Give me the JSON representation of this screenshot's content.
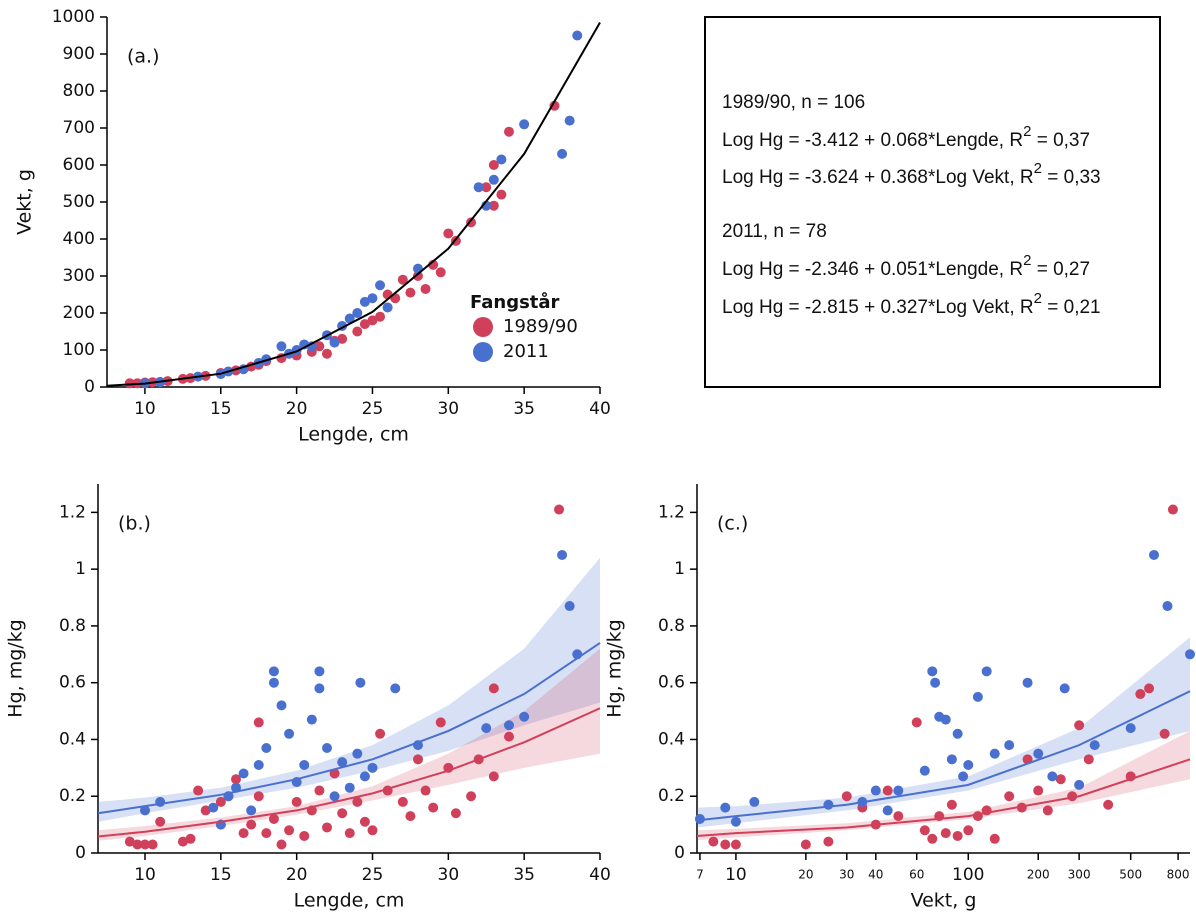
{
  "chart_data": [
    {
      "type": "scatter",
      "label": "(a.)",
      "xlabel": "Lengde, cm",
      "ylabel": "Vekt, g",
      "xlim": [
        7.5,
        40
      ],
      "ylim": [
        0,
        1000
      ],
      "xticks": [
        10,
        15,
        20,
        25,
        30,
        35,
        40
      ],
      "yticks": [
        0,
        100,
        200,
        300,
        400,
        500,
        600,
        700,
        800,
        900,
        1000
      ],
      "legend": true,
      "legend_title": "Fangstår",
      "series": [
        {
          "name": "1989/90",
          "color": "#d1405a",
          "x": [
            9,
            9.5,
            10,
            10.5,
            11,
            11.5,
            12.5,
            13,
            14,
            15,
            16,
            17,
            17.5,
            18,
            19,
            20,
            21,
            21.5,
            22,
            22.5,
            23,
            24,
            24.5,
            25,
            25.5,
            26,
            26.5,
            27,
            27.5,
            28,
            28.5,
            29,
            29.5,
            30,
            30.5,
            31.5,
            32.5,
            33,
            33,
            33.5,
            34,
            37
          ],
          "values": [
            10,
            10,
            12,
            13,
            14,
            16,
            22,
            24,
            30,
            38,
            45,
            55,
            60,
            70,
            78,
            85,
            95,
            110,
            90,
            125,
            130,
            150,
            170,
            180,
            190,
            250,
            240,
            290,
            255,
            300,
            265,
            330,
            310,
            415,
            395,
            445,
            540,
            600,
            490,
            520,
            690,
            760
          ]
        },
        {
          "name": "2011",
          "color": "#4a70cf",
          "x": [
            10,
            11,
            13.5,
            15,
            15.5,
            16.5,
            17.5,
            18,
            19,
            19.5,
            20,
            20.5,
            21,
            22,
            22.5,
            23,
            23.5,
            24,
            24.5,
            25,
            25.5,
            26,
            28,
            32,
            32.5,
            33,
            33.5,
            35,
            37.5,
            38,
            38.5
          ],
          "values": [
            10,
            13,
            28,
            35,
            42,
            48,
            65,
            75,
            110,
            90,
            100,
            115,
            110,
            140,
            120,
            165,
            185,
            200,
            230,
            240,
            275,
            215,
            320,
            540,
            490,
            560,
            615,
            710,
            630,
            720,
            950
          ]
        }
      ],
      "fits": [
        {
          "color": "#000000",
          "x": [
            7.5,
            10,
            15,
            20,
            25,
            30,
            35,
            40
          ],
          "values": [
            3.5,
            9.2,
            36,
            96,
            203,
            374,
            630,
            985
          ]
        }
      ]
    },
    {
      "type": "scatter",
      "label": "(b.)",
      "xlabel": "Lengde, cm",
      "ylabel": "Hg, mg/kg",
      "xlim": [
        6.9,
        40
      ],
      "ylim": [
        0,
        1.3
      ],
      "xticks": [
        10,
        15,
        20,
        25,
        30,
        35,
        40
      ],
      "yticks": [
        0,
        0.2,
        0.4,
        0.6,
        0.8,
        1,
        1.2
      ],
      "series": [
        {
          "color": "#d1405a",
          "x": [
            9,
            9.5,
            10,
            10.5,
            11,
            12.5,
            13,
            13.5,
            14,
            15,
            15,
            15.5,
            16,
            16.5,
            17,
            17.5,
            17.5,
            18,
            18.5,
            19,
            19.5,
            20,
            20.5,
            21,
            21.5,
            22,
            22.5,
            23,
            23.5,
            24,
            24.5,
            25,
            25.5,
            26,
            27,
            27.5,
            28,
            28.5,
            29,
            29.5,
            30,
            30.5,
            31.5,
            32,
            33,
            33,
            34,
            37.3
          ],
          "values": [
            0.04,
            0.03,
            0.03,
            0.03,
            0.11,
            0.04,
            0.05,
            0.22,
            0.15,
            0.18,
            0.1,
            0.2,
            0.26,
            0.07,
            0.1,
            0.46,
            0.2,
            0.07,
            0.12,
            0.03,
            0.08,
            0.18,
            0.06,
            0.15,
            0.22,
            0.09,
            0.28,
            0.14,
            0.07,
            0.18,
            0.11,
            0.08,
            0.42,
            0.22,
            0.18,
            0.13,
            0.33,
            0.22,
            0.16,
            0.46,
            0.3,
            0.14,
            0.2,
            0.33,
            0.58,
            0.27,
            0.41,
            1.21
          ]
        },
        {
          "color": "#4a70cf",
          "x": [
            10,
            11,
            14.5,
            15,
            15.5,
            16,
            16.5,
            17,
            17.5,
            18,
            18.5,
            18.5,
            19,
            19.5,
            20,
            20.5,
            21,
            21.5,
            21.5,
            22,
            22.5,
            23,
            23.5,
            24,
            24.2,
            24.5,
            25,
            26.5,
            28,
            32.5,
            34,
            35,
            37.5,
            38,
            38.5
          ],
          "values": [
            0.15,
            0.18,
            0.16,
            0.1,
            0.2,
            0.23,
            0.28,
            0.15,
            0.31,
            0.37,
            0.64,
            0.6,
            0.52,
            0.42,
            0.25,
            0.31,
            0.47,
            0.64,
            0.58,
            0.37,
            0.2,
            0.32,
            0.23,
            0.35,
            0.6,
            0.27,
            0.3,
            0.58,
            0.38,
            0.44,
            0.45,
            0.48,
            1.05,
            0.87,
            0.7
          ]
        }
      ],
      "fits": [
        {
          "color": "#4a70cf",
          "x": [
            6.9,
            10,
            15,
            20,
            25,
            30,
            35,
            40
          ],
          "values": [
            0.14,
            0.165,
            0.205,
            0.26,
            0.33,
            0.43,
            0.56,
            0.74
          ],
          "lower": [
            0.11,
            0.14,
            0.185,
            0.23,
            0.29,
            0.36,
            0.45,
            0.53
          ],
          "upper": [
            0.18,
            0.195,
            0.23,
            0.29,
            0.38,
            0.52,
            0.72,
            1.04
          ]
        },
        {
          "color": "#d1405a",
          "x": [
            6.9,
            10,
            15,
            20,
            25,
            30,
            35,
            40
          ],
          "values": [
            0.058,
            0.075,
            0.11,
            0.15,
            0.21,
            0.29,
            0.39,
            0.51
          ],
          "lower": [
            0.043,
            0.06,
            0.095,
            0.135,
            0.185,
            0.24,
            0.3,
            0.35
          ],
          "upper": [
            0.08,
            0.095,
            0.125,
            0.165,
            0.235,
            0.35,
            0.5,
            0.72
          ]
        }
      ]
    },
    {
      "type": "scatter",
      "label": "(c.)",
      "xlabel": "Vekt, g",
      "ylabel": "Hg, mg/kg",
      "xscale": "log",
      "xlim": [
        6.8,
        900
      ],
      "ylim": [
        0,
        1.3
      ],
      "xticks": [
        7,
        10,
        20,
        30,
        40,
        60,
        100,
        200,
        300,
        500,
        800
      ],
      "yticks": [
        0,
        0.2,
        0.4,
        0.6,
        0.8,
        1,
        1.2
      ],
      "series": [
        {
          "color": "#d1405a",
          "x": [
            8,
            9,
            10,
            20,
            25,
            30,
            35,
            40,
            45,
            50,
            60,
            65,
            70,
            75,
            80,
            85,
            90,
            100,
            110,
            120,
            130,
            150,
            170,
            180,
            200,
            220,
            250,
            280,
            300,
            330,
            400,
            500,
            550,
            600,
            700,
            760
          ],
          "values": [
            0.04,
            0.03,
            0.03,
            0.03,
            0.04,
            0.2,
            0.16,
            0.1,
            0.22,
            0.13,
            0.46,
            0.08,
            0.05,
            0.13,
            0.07,
            0.17,
            0.06,
            0.08,
            0.13,
            0.15,
            0.05,
            0.2,
            0.16,
            0.33,
            0.22,
            0.15,
            0.26,
            0.2,
            0.45,
            0.33,
            0.17,
            0.27,
            0.56,
            0.58,
            0.42,
            1.21
          ]
        },
        {
          "color": "#4a70cf",
          "x": [
            7,
            9,
            10,
            12,
            25,
            35,
            40,
            45,
            50,
            65,
            70,
            72,
            75,
            80,
            85,
            90,
            95,
            100,
            110,
            120,
            130,
            150,
            180,
            200,
            230,
            260,
            300,
            350,
            500,
            630,
            720,
            900
          ],
          "values": [
            0.12,
            0.16,
            0.11,
            0.18,
            0.17,
            0.18,
            0.22,
            0.15,
            0.22,
            0.29,
            0.64,
            0.6,
            0.48,
            0.47,
            0.33,
            0.42,
            0.27,
            0.31,
            0.55,
            0.64,
            0.35,
            0.38,
            0.6,
            0.35,
            0.27,
            0.58,
            0.24,
            0.38,
            0.44,
            1.05,
            0.87,
            0.7
          ]
        }
      ],
      "fits": [
        {
          "color": "#4a70cf",
          "x": [
            6.8,
            10,
            30,
            100,
            300,
            900
          ],
          "values": [
            0.115,
            0.13,
            0.17,
            0.24,
            0.38,
            0.57
          ],
          "lower": [
            0.09,
            0.105,
            0.15,
            0.22,
            0.33,
            0.43
          ],
          "upper": [
            0.16,
            0.165,
            0.195,
            0.27,
            0.44,
            0.76
          ]
        },
        {
          "color": "#d1405a",
          "x": [
            6.8,
            10,
            30,
            100,
            300,
            900
          ],
          "values": [
            0.06,
            0.07,
            0.09,
            0.13,
            0.2,
            0.33
          ],
          "lower": [
            0.045,
            0.055,
            0.08,
            0.12,
            0.175,
            0.26
          ],
          "upper": [
            0.08,
            0.085,
            0.105,
            0.145,
            0.23,
            0.43
          ]
        }
      ]
    }
  ],
  "equations": [
    {
      "text": "1989/90, n = 106"
    },
    {
      "text": "Log Hg = -3.412 + 0.068*Lengde, R",
      "sup": "2",
      "tail": " = 0,37"
    },
    {
      "text": "Log Hg = -3.624 + 0.368*Log Vekt, R",
      "sup": "2",
      "tail": " = 0,33"
    },
    {
      "text": "2011, n = 78"
    },
    {
      "text": "Log Hg = -2.346 + 0.051*Lengde, R",
      "sup": "2",
      "tail": " = 0,27"
    },
    {
      "text": "Log Hg = -2.815 + 0.327*Log Vekt, R",
      "sup": "2",
      "tail": " = 0,21"
    }
  ]
}
